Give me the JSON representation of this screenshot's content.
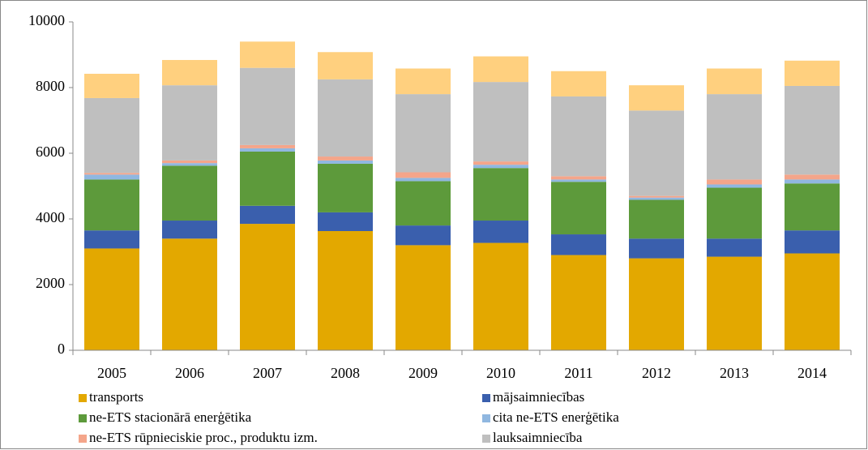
{
  "chart_data": {
    "type": "stacked_bar",
    "categories": [
      "2005",
      "2006",
      "2007",
      "2008",
      "2009",
      "2010",
      "2011",
      "2012",
      "2013",
      "2014"
    ],
    "series": [
      {
        "name": "transports",
        "color": "#e3a800",
        "values": [
          3100,
          3400,
          3850,
          3630,
          3200,
          3270,
          2900,
          2800,
          2850,
          2950
        ]
      },
      {
        "name": "mājsaimniecības",
        "color": "#3a5fad",
        "values": [
          550,
          550,
          550,
          570,
          600,
          680,
          630,
          600,
          550,
          700
        ]
      },
      {
        "name": "ne-ETS stacionārā enerģētika",
        "color": "#5d9a3b",
        "values": [
          1550,
          1670,
          1650,
          1480,
          1350,
          1600,
          1600,
          1180,
          1550,
          1430
        ]
      },
      {
        "name": "cita ne-ETS enerģētika",
        "color": "#90b7e0",
        "values": [
          150,
          80,
          100,
          100,
          100,
          100,
          70,
          70,
          100,
          120
        ]
      },
      {
        "name": "ne-ETS rūpnieciskie proc., produktu izm.",
        "color": "#f4a58a",
        "values": [
          50,
          80,
          100,
          120,
          170,
          100,
          100,
          50,
          150,
          150
        ]
      },
      {
        "name": "lauksaimniecība",
        "color": "#bfbfbf",
        "values": [
          2280,
          2290,
          2350,
          2350,
          2380,
          2420,
          2430,
          2600,
          2600,
          2700
        ]
      },
      {
        "color": "#ffd07f",
        "values": [
          740,
          770,
          800,
          830,
          780,
          780,
          770,
          770,
          780,
          770
        ]
      }
    ],
    "ylim": [
      0,
      10000
    ],
    "yticks": [
      0,
      2000,
      4000,
      6000,
      8000,
      10000
    ],
    "grid": false
  }
}
